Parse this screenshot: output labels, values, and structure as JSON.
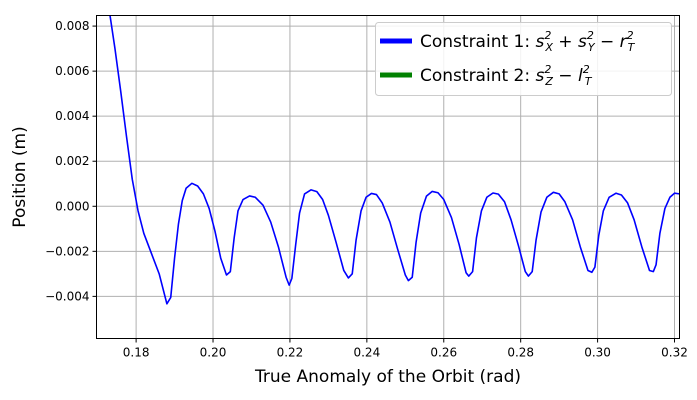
{
  "chart_data": {
    "type": "line",
    "xlabel": "True Anomaly of the Orbit (rad)",
    "ylabel": "Position (m)",
    "xlim": [
      0.1697,
      0.3213
    ],
    "ylim": [
      -0.00587,
      0.00847
    ],
    "x_ticks": [
      0.18,
      0.2,
      0.22,
      0.24,
      0.26,
      0.28,
      0.3,
      0.32
    ],
    "x_tick_labels": [
      "0.18",
      "0.20",
      "0.22",
      "0.24",
      "0.26",
      "0.28",
      "0.30",
      "0.32"
    ],
    "y_ticks": [
      -0.004,
      -0.002,
      0.0,
      0.002,
      0.004,
      0.006,
      0.008
    ],
    "y_tick_labels": [
      "−0.004",
      "−0.002",
      "0.000",
      "0.002",
      "0.004",
      "0.006",
      "0.008"
    ],
    "grid": true,
    "legend_position": "top-right",
    "series": [
      {
        "name": "Constraint 1: s_X² + s_Y² − r_T²",
        "color": "#0000ff",
        "points": [
          [
            0.1731,
            0.0086
          ],
          [
            0.1745,
            0.007
          ],
          [
            0.176,
            0.0051
          ],
          [
            0.1775,
            0.0031
          ],
          [
            0.179,
            0.0012
          ],
          [
            0.1805,
            -0.0002
          ],
          [
            0.182,
            -0.0012
          ],
          [
            0.184,
            -0.0021
          ],
          [
            0.186,
            -0.003
          ],
          [
            0.188,
            -0.00433
          ],
          [
            0.189,
            -0.00405
          ],
          [
            0.19,
            -0.0023
          ],
          [
            0.191,
            -0.0008
          ],
          [
            0.192,
            0.00025
          ],
          [
            0.193,
            0.0008
          ],
          [
            0.1945,
            0.00102
          ],
          [
            0.196,
            0.0009
          ],
          [
            0.1975,
            0.00055
          ],
          [
            0.199,
            -0.0001
          ],
          [
            0.2005,
            -0.0011
          ],
          [
            0.202,
            -0.0023
          ],
          [
            0.2035,
            -0.00305
          ],
          [
            0.2045,
            -0.0029
          ],
          [
            0.2055,
            -0.0014
          ],
          [
            0.2065,
            -0.0002
          ],
          [
            0.2078,
            0.0003
          ],
          [
            0.2095,
            0.00046
          ],
          [
            0.211,
            0.0004
          ],
          [
            0.213,
            5e-05
          ],
          [
            0.215,
            -0.0007
          ],
          [
            0.217,
            -0.0018
          ],
          [
            0.219,
            -0.00315
          ],
          [
            0.2198,
            -0.0035
          ],
          [
            0.2205,
            -0.0032
          ],
          [
            0.2215,
            -0.0017
          ],
          [
            0.2225,
            -0.0003
          ],
          [
            0.2238,
            0.00055
          ],
          [
            0.2255,
            0.00073
          ],
          [
            0.227,
            0.00065
          ],
          [
            0.2285,
            0.0003
          ],
          [
            0.23,
            -0.0004
          ],
          [
            0.232,
            -0.0016
          ],
          [
            0.234,
            -0.00285
          ],
          [
            0.2352,
            -0.00318
          ],
          [
            0.2362,
            -0.003
          ],
          [
            0.2372,
            -0.0015
          ],
          [
            0.2385,
            -0.0002
          ],
          [
            0.2398,
            0.0004
          ],
          [
            0.2412,
            0.00057
          ],
          [
            0.2425,
            0.00052
          ],
          [
            0.244,
            0.00015
          ],
          [
            0.246,
            -0.0007
          ],
          [
            0.248,
            -0.0019
          ],
          [
            0.25,
            -0.00305
          ],
          [
            0.2508,
            -0.0033
          ],
          [
            0.2518,
            -0.00315
          ],
          [
            0.2528,
            -0.0016
          ],
          [
            0.254,
            -0.0003
          ],
          [
            0.2555,
            0.00045
          ],
          [
            0.257,
            0.00066
          ],
          [
            0.2585,
            0.0006
          ],
          [
            0.26,
            0.0003
          ],
          [
            0.262,
            -0.0005
          ],
          [
            0.264,
            -0.0017
          ],
          [
            0.2658,
            -0.00295
          ],
          [
            0.2665,
            -0.0031
          ],
          [
            0.2675,
            -0.0029
          ],
          [
            0.2685,
            -0.0014
          ],
          [
            0.2698,
            -0.0002
          ],
          [
            0.2712,
            0.0004
          ],
          [
            0.2728,
            0.00059
          ],
          [
            0.2742,
            0.00054
          ],
          [
            0.2758,
            0.0002
          ],
          [
            0.2775,
            -0.0006
          ],
          [
            0.2795,
            -0.0018
          ],
          [
            0.2812,
            -0.0029
          ],
          [
            0.282,
            -0.0031
          ],
          [
            0.283,
            -0.0029
          ],
          [
            0.284,
            -0.0015
          ],
          [
            0.2853,
            -0.00025
          ],
          [
            0.2868,
            0.0004
          ],
          [
            0.2885,
            0.00062
          ],
          [
            0.29,
            0.00055
          ],
          [
            0.2915,
            0.0002
          ],
          [
            0.2935,
            -0.0006
          ],
          [
            0.2955,
            -0.0018
          ],
          [
            0.2975,
            -0.00285
          ],
          [
            0.2985,
            -0.00293
          ],
          [
            0.2993,
            -0.0027
          ],
          [
            0.3003,
            -0.0013
          ],
          [
            0.3015,
            -0.0002
          ],
          [
            0.303,
            0.0004
          ],
          [
            0.3048,
            0.00058
          ],
          [
            0.3062,
            0.0005
          ],
          [
            0.3078,
            0.00015
          ],
          [
            0.3095,
            -0.0006
          ],
          [
            0.3115,
            -0.0018
          ],
          [
            0.3135,
            -0.00285
          ],
          [
            0.3145,
            -0.0029
          ],
          [
            0.3152,
            -0.0026
          ],
          [
            0.3162,
            -0.0012
          ],
          [
            0.3175,
            -0.0001
          ],
          [
            0.3188,
            0.0004
          ],
          [
            0.32,
            0.00058
          ],
          [
            0.3213,
            0.00055
          ]
        ]
      },
      {
        "name": "Constraint 2: s_Z² − l_T²",
        "color": "#008000",
        "points": []
      }
    ]
  },
  "legend": {
    "entries": [
      {
        "prefix": "Constraint 1: ",
        "color": "#0000ff"
      },
      {
        "prefix": "Constraint 2: ",
        "color": "#008000"
      }
    ]
  }
}
